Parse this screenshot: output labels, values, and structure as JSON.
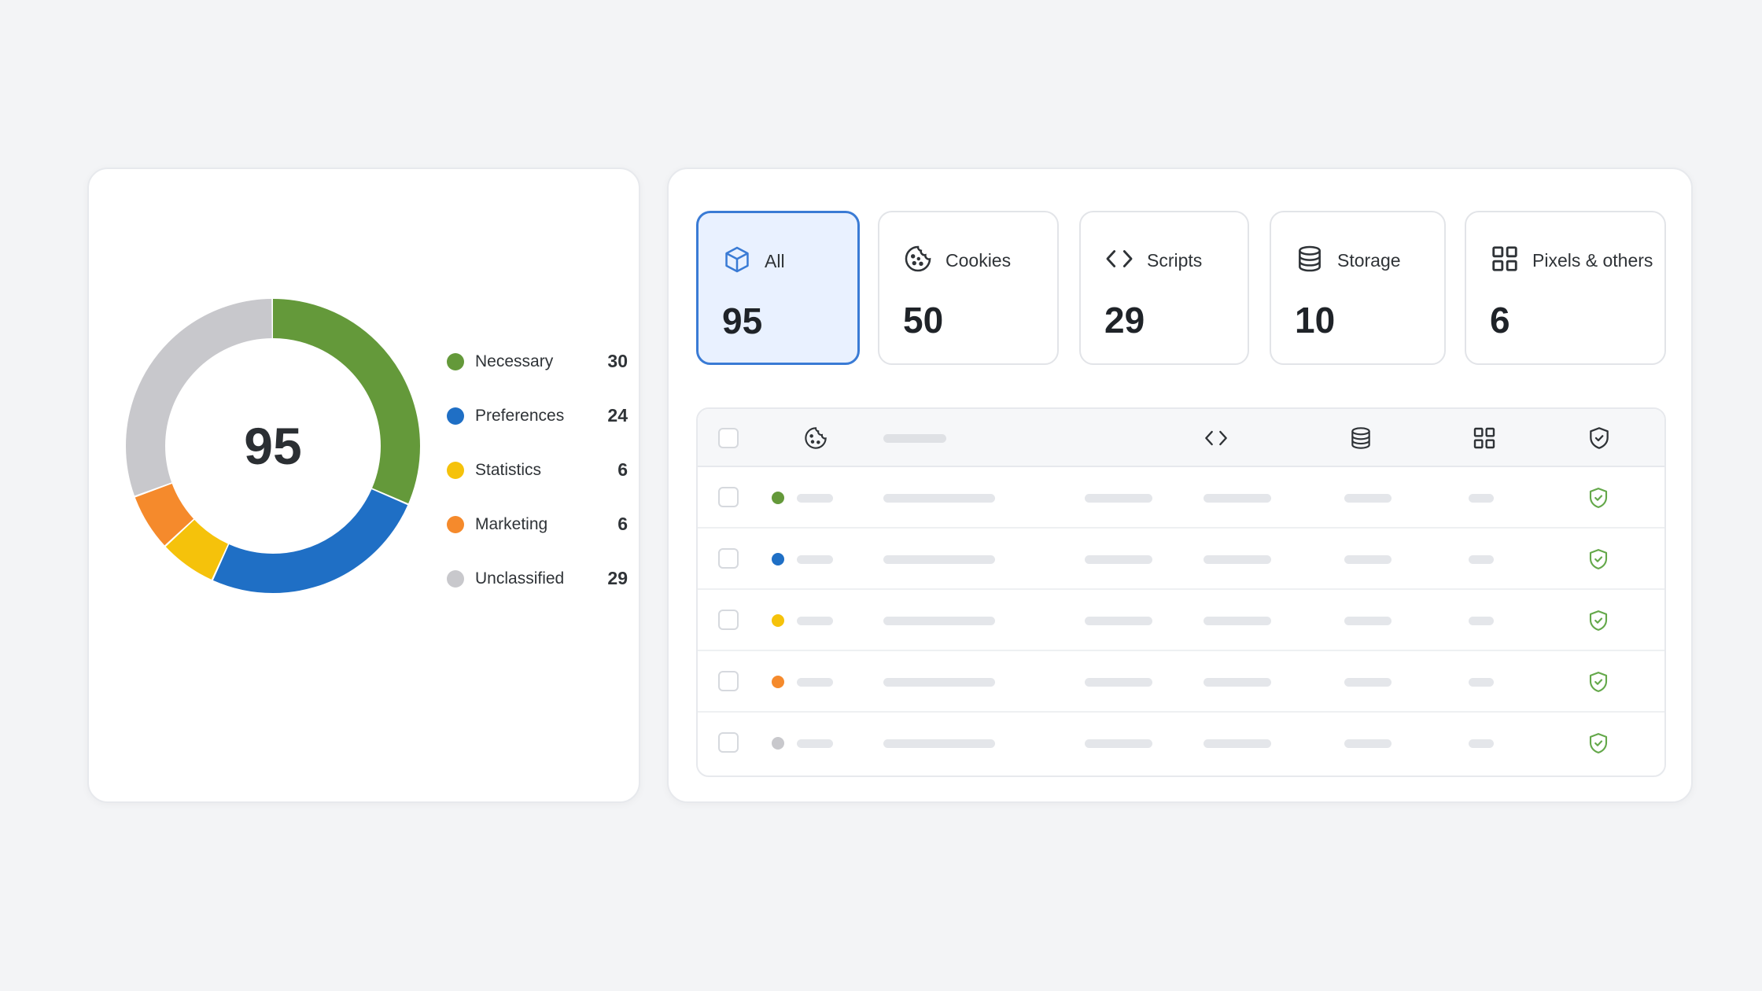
{
  "chart_data": {
    "type": "pie",
    "style": "donut",
    "total": 95,
    "categories": [
      "Necessary",
      "Preferences",
      "Statistics",
      "Marketing",
      "Unclassified"
    ],
    "values": [
      30,
      24,
      6,
      6,
      29
    ],
    "colors": [
      "#64993a",
      "#1f6fc5",
      "#f5c20b",
      "#f58a2c",
      "#c8c8cc"
    ],
    "legend_position": "right"
  },
  "donut": {
    "center_label": "95",
    "legend": [
      {
        "label": "Necessary",
        "count": "30",
        "color": "#64993a"
      },
      {
        "label": "Preferences",
        "count": "24",
        "color": "#1f6fc5"
      },
      {
        "label": "Statistics",
        "count": "6",
        "color": "#f5c20b"
      },
      {
        "label": "Marketing",
        "count": "6",
        "color": "#f58a2c"
      },
      {
        "label": "Unclassified",
        "count": "29",
        "color": "#c8c8cc"
      }
    ]
  },
  "tabs": [
    {
      "label": "All",
      "count": "95",
      "icon": "cube-icon",
      "active": true
    },
    {
      "label": "Cookies",
      "count": "50",
      "icon": "cookie-icon",
      "active": false
    },
    {
      "label": "Scripts",
      "count": "29",
      "icon": "code-icon",
      "active": false
    },
    {
      "label": "Storage",
      "count": "10",
      "icon": "database-icon",
      "active": false
    },
    {
      "label": "Pixels & others",
      "count": "6",
      "icon": "grid-icon",
      "active": false
    }
  ],
  "table": {
    "header_icons": [
      "cookie-icon",
      "code-icon",
      "database-icon",
      "grid-icon",
      "shield-icon"
    ],
    "rows": [
      {
        "category_color": "#64993a",
        "status_icon": "shield-check-icon"
      },
      {
        "category_color": "#1f6fc5",
        "status_icon": "shield-check-icon"
      },
      {
        "category_color": "#f5c20b",
        "status_icon": "shield-check-icon"
      },
      {
        "category_color": "#f58a2c",
        "status_icon": "shield-check-icon"
      },
      {
        "category_color": "#c8c8cc",
        "status_icon": "shield-check-icon"
      }
    ]
  },
  "colors": {
    "accent": "#3a7bd5",
    "active_tab_bg": "#e9f1ff",
    "shield_green": "#64a84a"
  }
}
